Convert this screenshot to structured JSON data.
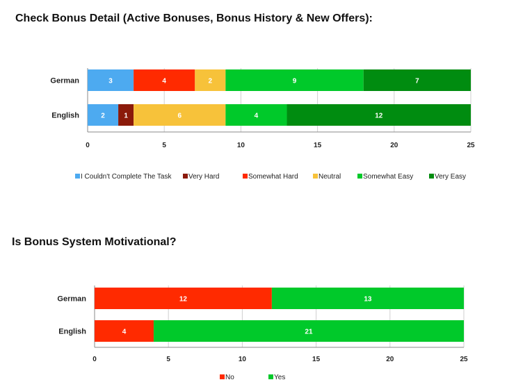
{
  "chart_data": [
    {
      "type": "bar",
      "orientation": "horizontal",
      "stacked": true,
      "title": "Check Bonus Detail (Active Bonuses, Bonus History & New Offers):",
      "categories": [
        "German",
        "English"
      ],
      "xlim": [
        0,
        25
      ],
      "xticks": [
        0,
        5,
        10,
        15,
        20,
        25
      ],
      "grid": true,
      "legend_position": "bottom",
      "series": [
        {
          "name": "I Couldn't Complete The Task",
          "color": "#4daaf0",
          "values": [
            3,
            2
          ]
        },
        {
          "name": "Very Hard",
          "color": "#8b1a0a",
          "values": [
            0,
            1
          ]
        },
        {
          "name": "Somewhat Hard",
          "color": "#ff2a00",
          "values": [
            4,
            0
          ]
        },
        {
          "name": "Neutral",
          "color": "#f7c23a",
          "values": [
            2,
            6
          ]
        },
        {
          "name": "Somewhat Easy",
          "color": "#00c92a",
          "values": [
            9,
            4
          ]
        },
        {
          "name": "Very Easy",
          "color": "#008c10",
          "values": [
            7,
            12
          ]
        }
      ]
    },
    {
      "type": "bar",
      "orientation": "horizontal",
      "stacked": true,
      "title": "Is Bonus System Motivational?",
      "categories": [
        "German",
        "English"
      ],
      "xlim": [
        0,
        25
      ],
      "xticks": [
        0,
        5,
        10,
        15,
        20,
        25
      ],
      "grid": true,
      "legend_position": "bottom",
      "series": [
        {
          "name": "No",
          "color": "#ff2a00",
          "values": [
            12,
            4
          ]
        },
        {
          "name": "Yes",
          "color": "#00c92a",
          "values": [
            13,
            21
          ]
        }
      ]
    }
  ]
}
